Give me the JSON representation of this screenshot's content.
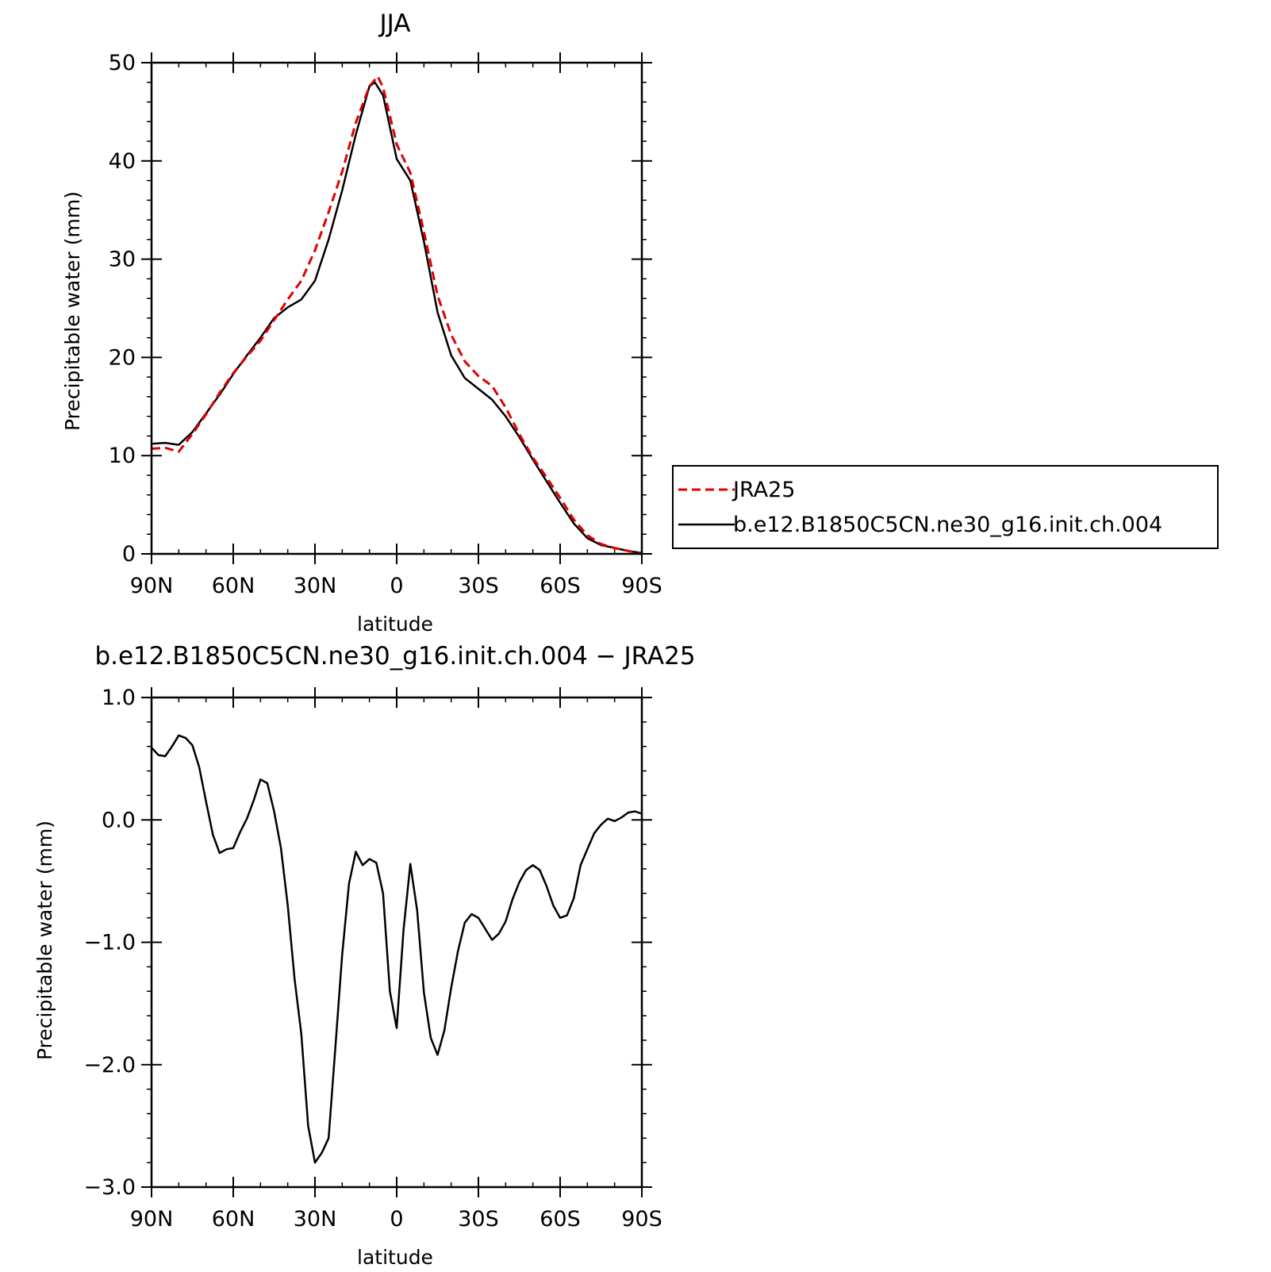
{
  "chart_data": [
    {
      "type": "line",
      "title": "JJA",
      "xlabel": "latitude",
      "ylabel": "Precipitable water (mm)",
      "xticks": [
        90,
        60,
        30,
        0,
        -30,
        -60,
        -90
      ],
      "xtick_labels": [
        "90N",
        "60N",
        "30N",
        "0",
        "30S",
        "60S",
        "90S"
      ],
      "xlim": [
        90,
        -90
      ],
      "ylim": [
        0,
        50
      ],
      "yticks": [
        0,
        10,
        20,
        30,
        40,
        50
      ],
      "ytick_labels": [
        "0",
        "10",
        "20",
        "30",
        "40",
        "50"
      ],
      "grid": false,
      "legend_position": "right",
      "series": [
        {
          "name": "JRA25",
          "color": "#e00000",
          "dash": "dashed",
          "x": [
            90,
            85,
            80,
            75,
            70,
            65,
            60,
            55,
            50,
            45,
            40,
            35,
            30,
            25,
            20,
            15,
            10,
            7,
            5,
            0,
            -5,
            -10,
            -15,
            -20,
            -25,
            -30,
            -35,
            -40,
            -45,
            -50,
            -55,
            -60,
            -65,
            -70,
            -75,
            -80,
            -85,
            -90
          ],
          "values": [
            10.7,
            10.8,
            10.4,
            12.2,
            14.2,
            16.4,
            18.4,
            20.1,
            21.7,
            23.8,
            25.9,
            27.8,
            30.9,
            34.8,
            38.9,
            43.9,
            47.6,
            48.6,
            47.5,
            41.7,
            38.8,
            32.8,
            26.3,
            22.3,
            19.6,
            18.1,
            17.1,
            14.9,
            12.2,
            9.8,
            7.8,
            5.7,
            3.5,
            1.9,
            1.0,
            0.6,
            0.3,
            0.0
          ]
        },
        {
          "name": "b.e12.B1850C5CN.ne30_g16.init.ch.004",
          "color": "#000000",
          "dash": "solid",
          "x": [
            90,
            85,
            80,
            75,
            70,
            65,
            60,
            55,
            50,
            45,
            40,
            35,
            30,
            25,
            20,
            15,
            10,
            8,
            5,
            0,
            -5,
            -10,
            -15,
            -20,
            -25,
            -30,
            -35,
            -40,
            -45,
            -50,
            -55,
            -60,
            -65,
            -70,
            -75,
            -80,
            -85,
            -90
          ],
          "values": [
            11.2,
            11.3,
            11.1,
            12.4,
            14.3,
            16.2,
            18.3,
            20.2,
            22.0,
            24.0,
            25.1,
            25.9,
            27.8,
            32.0,
            37.0,
            42.7,
            47.6,
            48.0,
            46.7,
            40.2,
            38.0,
            31.8,
            24.6,
            20.2,
            17.9,
            16.8,
            15.7,
            14.0,
            11.9,
            9.6,
            7.4,
            5.2,
            3.1,
            1.6,
            0.9,
            0.6,
            0.3,
            0.1
          ]
        }
      ]
    },
    {
      "type": "line",
      "title": "b.e12.B1850C5CN.ne30_g16.init.ch.004 − JRA25",
      "xlabel": "latitude",
      "ylabel": "Precipitable water (mm)",
      "xticks": [
        90,
        60,
        30,
        0,
        -30,
        -60,
        -90
      ],
      "xtick_labels": [
        "90N",
        "60N",
        "30N",
        "0",
        "30S",
        "60S",
        "90S"
      ],
      "xlim": [
        90,
        -90
      ],
      "ylim": [
        -3,
        1
      ],
      "yticks": [
        -3,
        -2,
        -1,
        0,
        1
      ],
      "ytick_labels": [
        "−3.0",
        "−2.0",
        "−1.0",
        "0.0",
        "1.0"
      ],
      "grid": false,
      "series": [
        {
          "color": "#000000",
          "dash": "solid",
          "x": [
            90,
            87.5,
            85,
            82.5,
            80,
            77.5,
            75,
            72.5,
            70,
            67.5,
            65,
            62.5,
            60,
            57.5,
            55,
            52.5,
            50,
            47.5,
            45,
            42.5,
            40,
            37.5,
            35,
            32.5,
            30,
            27.5,
            25,
            22.5,
            20,
            17.5,
            15,
            12.5,
            10,
            7.5,
            5,
            2.5,
            0,
            -2.5,
            -5,
            -7.5,
            -10,
            -12.5,
            -15,
            -17.5,
            -20,
            -22.5,
            -25,
            -27.5,
            -30,
            -32.5,
            -35,
            -37.5,
            -40,
            -42.5,
            -45,
            -47.5,
            -50,
            -52.5,
            -55,
            -57.5,
            -60,
            -62.5,
            -65,
            -67.5,
            -70,
            -72.5,
            -75,
            -77.5,
            -80,
            -82.5,
            -85,
            -87.5,
            -90
          ],
          "values": [
            0.59,
            0.53,
            0.52,
            0.6,
            0.69,
            0.67,
            0.61,
            0.43,
            0.15,
            -0.12,
            -0.27,
            -0.24,
            -0.23,
            -0.1,
            0.01,
            0.16,
            0.33,
            0.3,
            0.07,
            -0.23,
            -0.7,
            -1.3,
            -1.75,
            -2.5,
            -2.8,
            -2.72,
            -2.6,
            -1.85,
            -1.1,
            -0.52,
            -0.26,
            -0.37,
            -0.32,
            -0.35,
            -0.6,
            -1.4,
            -1.7,
            -0.9,
            -0.36,
            -0.74,
            -1.41,
            -1.78,
            -1.92,
            -1.72,
            -1.37,
            -1.07,
            -0.84,
            -0.77,
            -0.8,
            -0.89,
            -0.98,
            -0.93,
            -0.83,
            -0.65,
            -0.51,
            -0.41,
            -0.37,
            -0.41,
            -0.54,
            -0.7,
            -0.8,
            -0.78,
            -0.64,
            -0.37,
            -0.24,
            -0.11,
            -0.04,
            0.01,
            -0.01,
            0.02,
            0.06,
            0.07,
            0.05
          ]
        }
      ]
    }
  ]
}
